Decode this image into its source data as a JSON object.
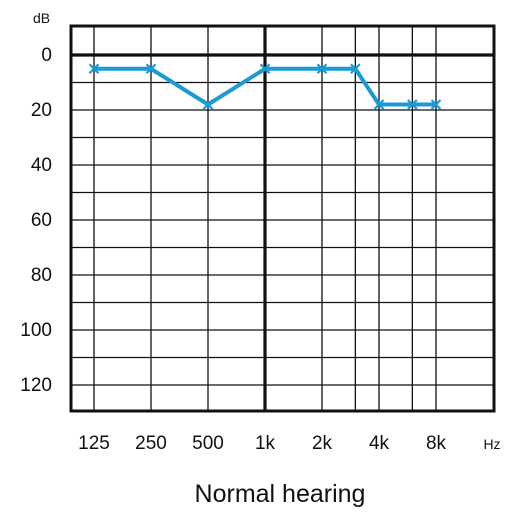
{
  "chart_data": {
    "type": "line",
    "title": "",
    "caption": "Normal hearing",
    "xlabel": "Hz",
    "ylabel": "dB",
    "x_scale": "log",
    "y_inverted": true,
    "ylim": [
      -5,
      130
    ],
    "xlim_hz": [
      100,
      10000
    ],
    "x_ticks": [
      {
        "hz": 125,
        "label": "125"
      },
      {
        "hz": 250,
        "label": "250"
      },
      {
        "hz": 500,
        "label": "500"
      },
      {
        "hz": 1000,
        "label": "1k"
      },
      {
        "hz": 2000,
        "label": "2k"
      },
      {
        "hz": 4000,
        "label": "4k"
      },
      {
        "hz": 8000,
        "label": "8k"
      }
    ],
    "y_ticks": [
      0,
      20,
      40,
      60,
      80,
      100,
      120
    ],
    "extra_gridlines_hz": [
      3000,
      6000
    ],
    "grid": true,
    "series": [
      {
        "color": "#1a9ad6",
        "marker": "x",
        "points": [
          {
            "x": 125,
            "y": 5
          },
          {
            "x": 250,
            "y": 5
          },
          {
            "x": 500,
            "y": 18
          },
          {
            "x": 1000,
            "y": 5
          },
          {
            "x": 2000,
            "y": 5
          },
          {
            "x": 3000,
            "y": 5
          },
          {
            "x": 4000,
            "y": 18
          },
          {
            "x": 6000,
            "y": 18
          },
          {
            "x": 8000,
            "y": 18
          }
        ]
      }
    ]
  }
}
